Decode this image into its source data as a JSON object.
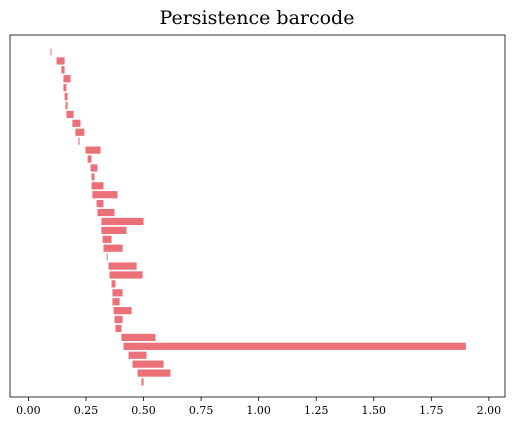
{
  "chart_data": {
    "type": "barcode",
    "title": "Persistence barcode",
    "color": "#eb7077",
    "births": [
      0.096,
      0.122,
      0.143,
      0.152,
      0.152,
      0.157,
      0.161,
      0.165,
      0.191,
      0.204,
      0.217,
      0.248,
      0.257,
      0.27,
      0.274,
      0.274,
      0.278,
      0.296,
      0.3,
      0.317,
      0.317,
      0.322,
      0.326,
      0.34,
      0.348,
      0.352,
      0.361,
      0.365,
      0.365,
      0.37,
      0.374,
      0.378,
      0.404,
      0.413,
      0.435,
      0.452,
      0.474,
      0.491
    ],
    "deaths": [
      0.1,
      0.157,
      0.157,
      0.183,
      0.165,
      0.17,
      0.17,
      0.196,
      0.226,
      0.243,
      0.222,
      0.313,
      0.274,
      0.3,
      0.287,
      0.326,
      0.387,
      0.326,
      0.374,
      0.5,
      0.426,
      0.361,
      0.409,
      0.34,
      0.47,
      0.496,
      0.378,
      0.409,
      0.396,
      0.448,
      0.409,
      0.404,
      0.552,
      1.9,
      0.513,
      0.587,
      0.617,
      0.5
    ],
    "xlim": [
      -0.08,
      2.07
    ],
    "xticks": [
      {
        "value": 0,
        "label": "0.00"
      },
      {
        "value": 0.25,
        "label": "0.25"
      },
      {
        "value": 0.5,
        "label": "0.50"
      },
      {
        "value": 0.75,
        "label": "0.75"
      },
      {
        "value": 1,
        "label": "1.00"
      },
      {
        "value": 1.25,
        "label": "1.25"
      },
      {
        "value": 1.5,
        "label": "1.50"
      },
      {
        "value": 1.75,
        "label": "1.75"
      },
      {
        "value": 2,
        "label": "2.00"
      }
    ]
  }
}
